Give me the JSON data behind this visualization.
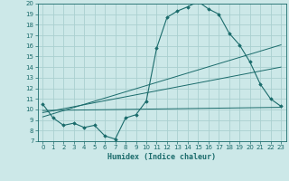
{
  "xlabel": "Humidex (Indice chaleur)",
  "bg_color": "#cce8e8",
  "grid_color": "#aad0d0",
  "line_color": "#1a6b6b",
  "xlim": [
    -0.5,
    23.5
  ],
  "ylim": [
    7,
    20
  ],
  "yticks": [
    7,
    8,
    9,
    10,
    11,
    12,
    13,
    14,
    15,
    16,
    17,
    18,
    19,
    20
  ],
  "xticks": [
    0,
    1,
    2,
    3,
    4,
    5,
    6,
    7,
    8,
    9,
    10,
    11,
    12,
    13,
    14,
    15,
    16,
    17,
    18,
    19,
    20,
    21,
    22,
    23
  ],
  "main_line": {
    "x": [
      0,
      1,
      2,
      3,
      4,
      5,
      6,
      7,
      8,
      9,
      10,
      11,
      12,
      13,
      14,
      15,
      16,
      17,
      18,
      19,
      20,
      21,
      22,
      23
    ],
    "y": [
      10.5,
      9.2,
      8.5,
      8.7,
      8.3,
      8.5,
      7.5,
      7.2,
      9.2,
      9.5,
      10.8,
      15.8,
      18.7,
      19.3,
      19.7,
      20.2,
      19.5,
      19.0,
      17.2,
      16.1,
      14.5,
      12.4,
      11.0,
      10.3
    ]
  },
  "trend_lines": [
    {
      "x": [
        0,
        23
      ],
      "y": [
        9.3,
        16.1
      ]
    },
    {
      "x": [
        0,
        23
      ],
      "y": [
        9.7,
        14.0
      ]
    },
    {
      "x": [
        0,
        23
      ],
      "y": [
        9.9,
        10.2
      ]
    }
  ]
}
